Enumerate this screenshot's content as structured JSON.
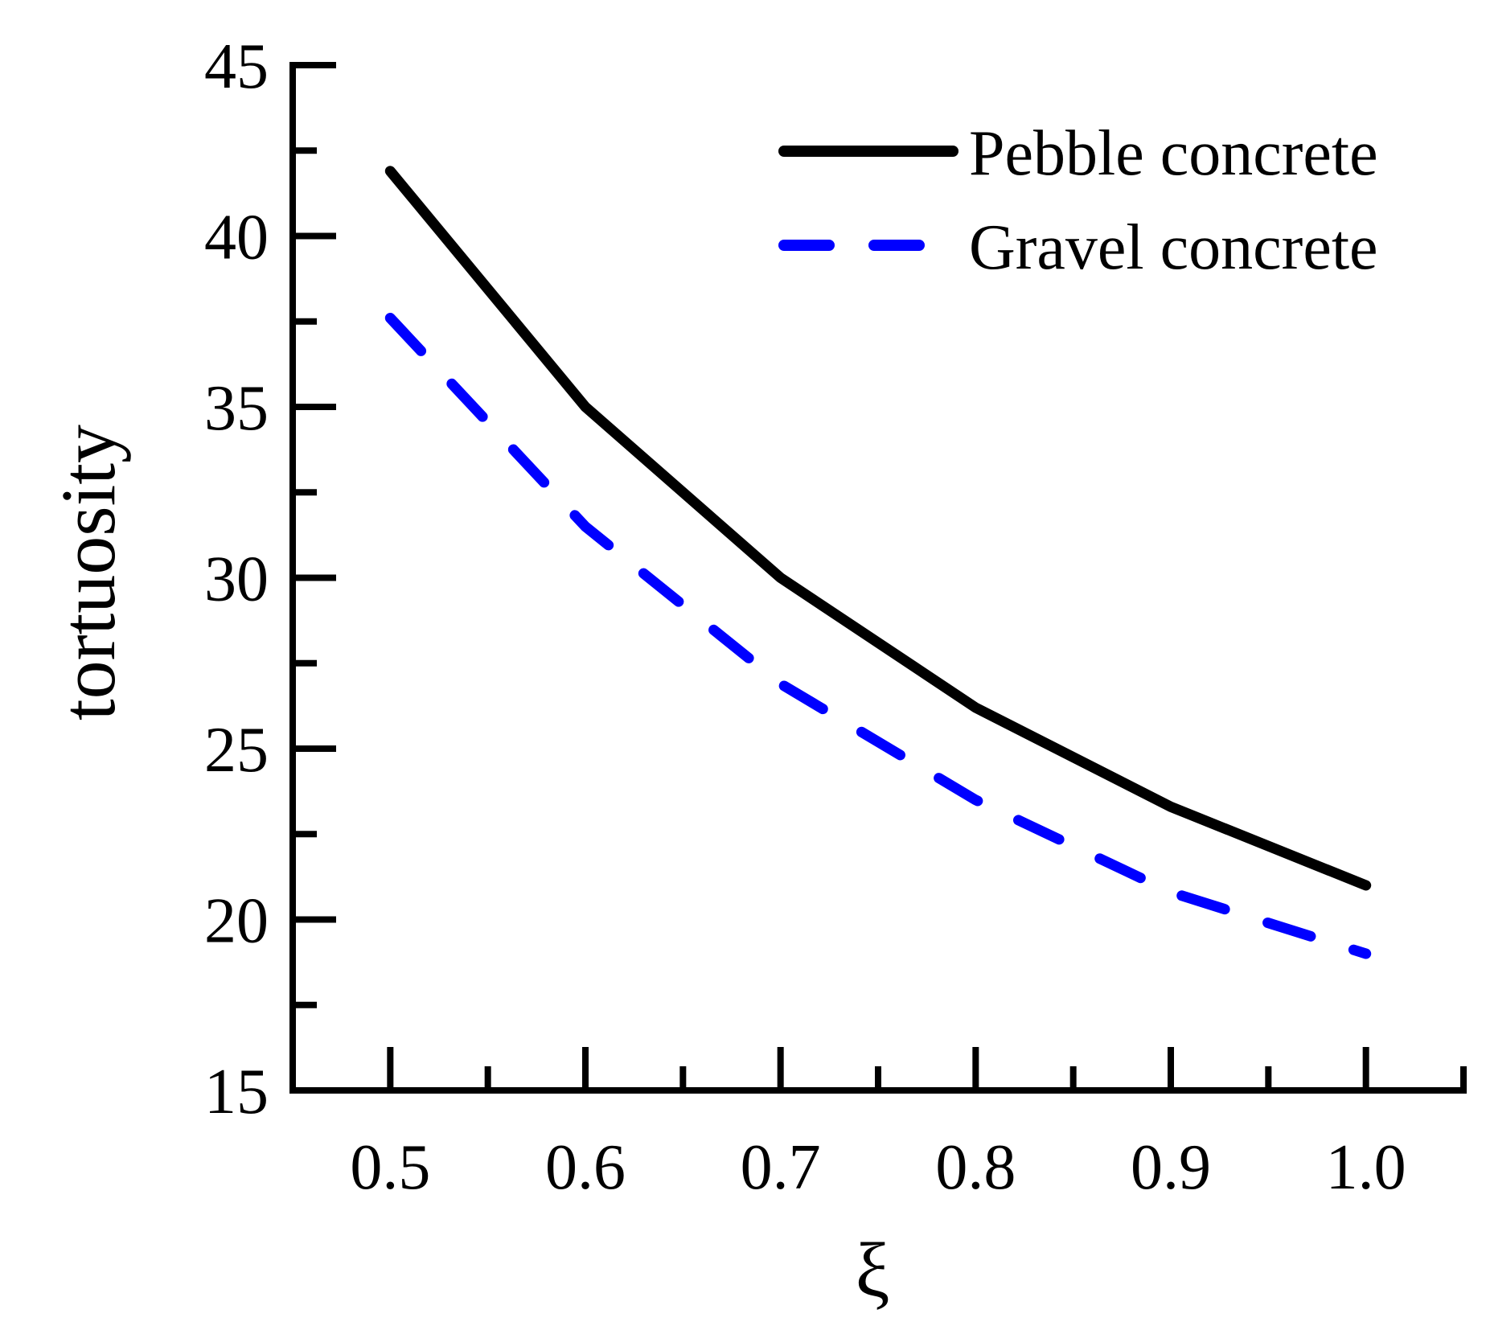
{
  "chart_data": {
    "type": "line",
    "title": "",
    "xlabel": "ξ",
    "ylabel": "tortuosity",
    "xlim": [
      0.45,
      1.05
    ],
    "ylim": [
      15,
      45
    ],
    "x_ticks": [
      0.5,
      0.6,
      0.7,
      0.8,
      0.9,
      1.0
    ],
    "x_tick_labels": [
      "0.5",
      "0.6",
      "0.7",
      "0.8",
      "0.9",
      "1.0"
    ],
    "x_minor_ticks": [
      0.55,
      0.65,
      0.75,
      0.85,
      0.95,
      1.05
    ],
    "y_ticks": [
      15,
      20,
      25,
      30,
      35,
      40,
      45
    ],
    "y_tick_labels": [
      "15",
      "20",
      "25",
      "30",
      "35",
      "40",
      "45"
    ],
    "y_minor_ticks": [
      17.5,
      22.5,
      27.5,
      32.5,
      37.5,
      42.5
    ],
    "grid": false,
    "legend_position": "top-right",
    "series": [
      {
        "name": "Pebble concrete",
        "style": "solid",
        "color": "#000000",
        "x": [
          0.5,
          0.6,
          0.7,
          0.8,
          0.9,
          1.0
        ],
        "y": [
          41.9,
          35.0,
          30.0,
          26.2,
          23.3,
          21.0
        ]
      },
      {
        "name": "Gravel concrete",
        "style": "dashed",
        "color": "#0000ff",
        "x": [
          0.5,
          0.6,
          0.7,
          0.8,
          0.9,
          1.0
        ],
        "y": [
          37.6,
          31.5,
          26.9,
          23.5,
          20.8,
          19.0
        ]
      }
    ]
  }
}
